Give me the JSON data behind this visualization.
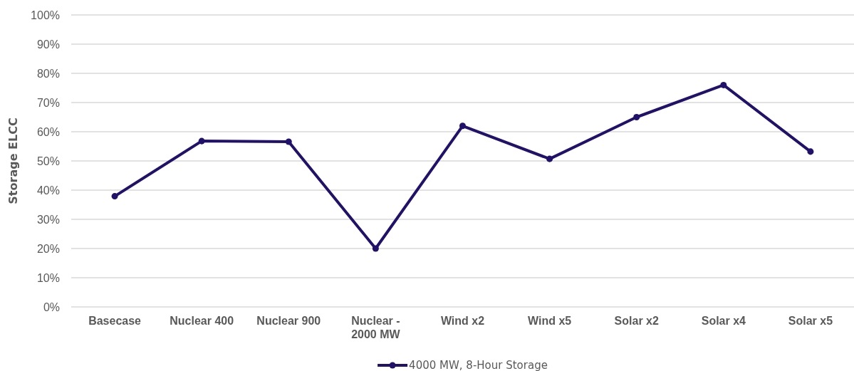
{
  "chart_data": {
    "type": "line",
    "ylabel": "Storage ELCC",
    "categories": [
      "Basecase",
      "Nuclear 400",
      "Nuclear 900",
      "Nuclear - 2000 MW",
      "Wind x2",
      "Wind x5",
      "Solar x2",
      "Solar x4",
      "Solar x5"
    ],
    "series": [
      {
        "name": "4000 MW, 8-Hour Storage",
        "color": "#22116b",
        "values": [
          37.9,
          56.8,
          56.6,
          20,
          62,
          50.7,
          65,
          76,
          53.2
        ]
      }
    ],
    "ylim": [
      0,
      100
    ],
    "yticks": [
      {
        "value": 0,
        "label": "0%"
      },
      {
        "value": 10,
        "label": "10%"
      },
      {
        "value": 20,
        "label": "20%"
      },
      {
        "value": 30,
        "label": "30%"
      },
      {
        "value": 40,
        "label": "40%"
      },
      {
        "value": 50,
        "label": "50%"
      },
      {
        "value": 60,
        "label": "60%"
      },
      {
        "value": 70,
        "label": "70%"
      },
      {
        "value": 80,
        "label": "80%"
      },
      {
        "value": 90,
        "label": "90%"
      },
      {
        "value": 100,
        "label": "100%"
      }
    ],
    "grid": "y",
    "legend": "bottom",
    "marker": "circle",
    "line_style": "solid"
  }
}
